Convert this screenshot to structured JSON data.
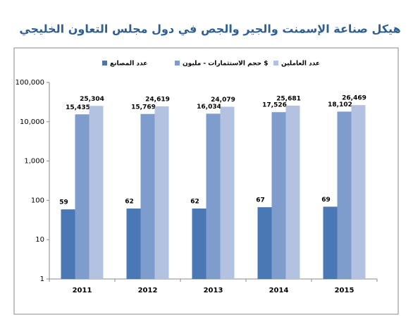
{
  "chart_data": {
    "type": "bar",
    "title": "هيكل صناعة الإسمنت والجير والجص في دول مجلس التعاون الخليجي",
    "categories": [
      "2011",
      "2012",
      "2013",
      "2014",
      "2015"
    ],
    "series": [
      {
        "name": "عدد المصانع",
        "color": "#4a78b4",
        "values": [
          59,
          62,
          62,
          67,
          69
        ]
      },
      {
        "name": "حجم الاستثمارات - مليون $",
        "color": "#7e9dcc",
        "values": [
          15435,
          15769,
          16034,
          17526,
          18102
        ],
        "value_labels": [
          "15,435",
          "15,769",
          "16,034",
          "17,526",
          "18,102"
        ]
      },
      {
        "name": "عدد العاملين",
        "color": "#b3c2e0",
        "values": [
          25304,
          24619,
          24079,
          25681,
          26469
        ],
        "value_labels": [
          "25,304",
          "24,619",
          "24,079",
          "25,681",
          "26,469"
        ]
      }
    ],
    "ylim": [
      1,
      100000
    ],
    "log_scale": true,
    "yticks": [
      1,
      10,
      100,
      {
        "value": 1000,
        "label": "1,000"
      },
      {
        "value": 10000,
        "label": "10,000"
      },
      {
        "value": 100000,
        "label": "100,000"
      }
    ],
    "legend": "top"
  }
}
